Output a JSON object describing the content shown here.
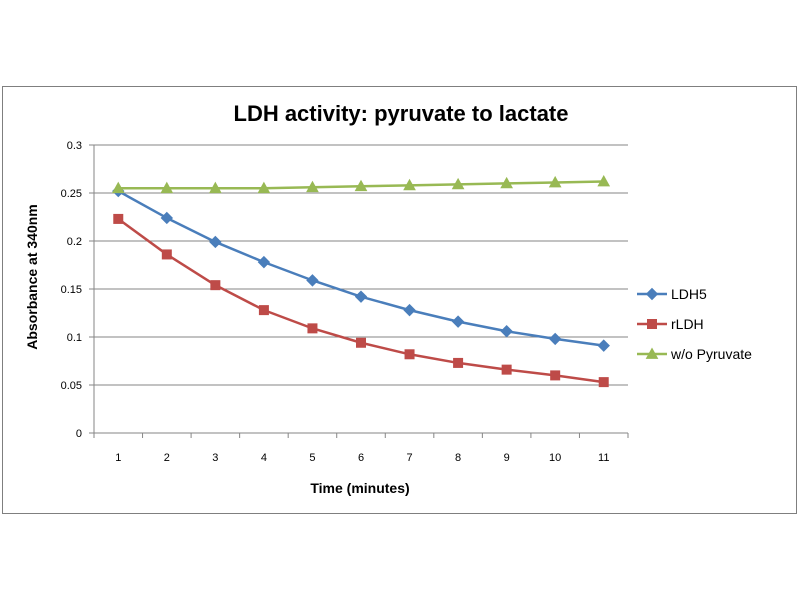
{
  "chart_data": {
    "type": "line",
    "title": "LDH activity: pyruvate to lactate",
    "xlabel": "Time (minutes)",
    "ylabel": "Absorbance at 340nm",
    "categories": [
      "1",
      "2",
      "3",
      "4",
      "5",
      "6",
      "7",
      "8",
      "9",
      "10",
      "11"
    ],
    "ylim": [
      0,
      0.3
    ],
    "yticks": [
      "0",
      "0.05",
      "0.1",
      "0.15",
      "0.2",
      "0.25",
      "0.3"
    ],
    "ytick_values": [
      0,
      0.05,
      0.1,
      0.15,
      0.2,
      0.25,
      0.3
    ],
    "grid": true,
    "legend_position": "right",
    "series": [
      {
        "name": "LDH5",
        "color": "#4a7ebb",
        "marker": "diamond",
        "values": [
          0.252,
          0.224,
          0.199,
          0.178,
          0.159,
          0.142,
          0.128,
          0.116,
          0.106,
          0.098,
          0.091
        ]
      },
      {
        "name": "rLDH",
        "color": "#be4b48",
        "marker": "square",
        "values": [
          0.223,
          0.186,
          0.154,
          0.128,
          0.109,
          0.094,
          0.082,
          0.073,
          0.066,
          0.06,
          0.053
        ]
      },
      {
        "name": "w/o Pyruvate",
        "color": "#98b954",
        "marker": "triangle",
        "values": [
          0.255,
          0.255,
          0.255,
          0.255,
          0.256,
          0.257,
          0.258,
          0.259,
          0.26,
          0.261,
          0.262
        ]
      }
    ]
  }
}
